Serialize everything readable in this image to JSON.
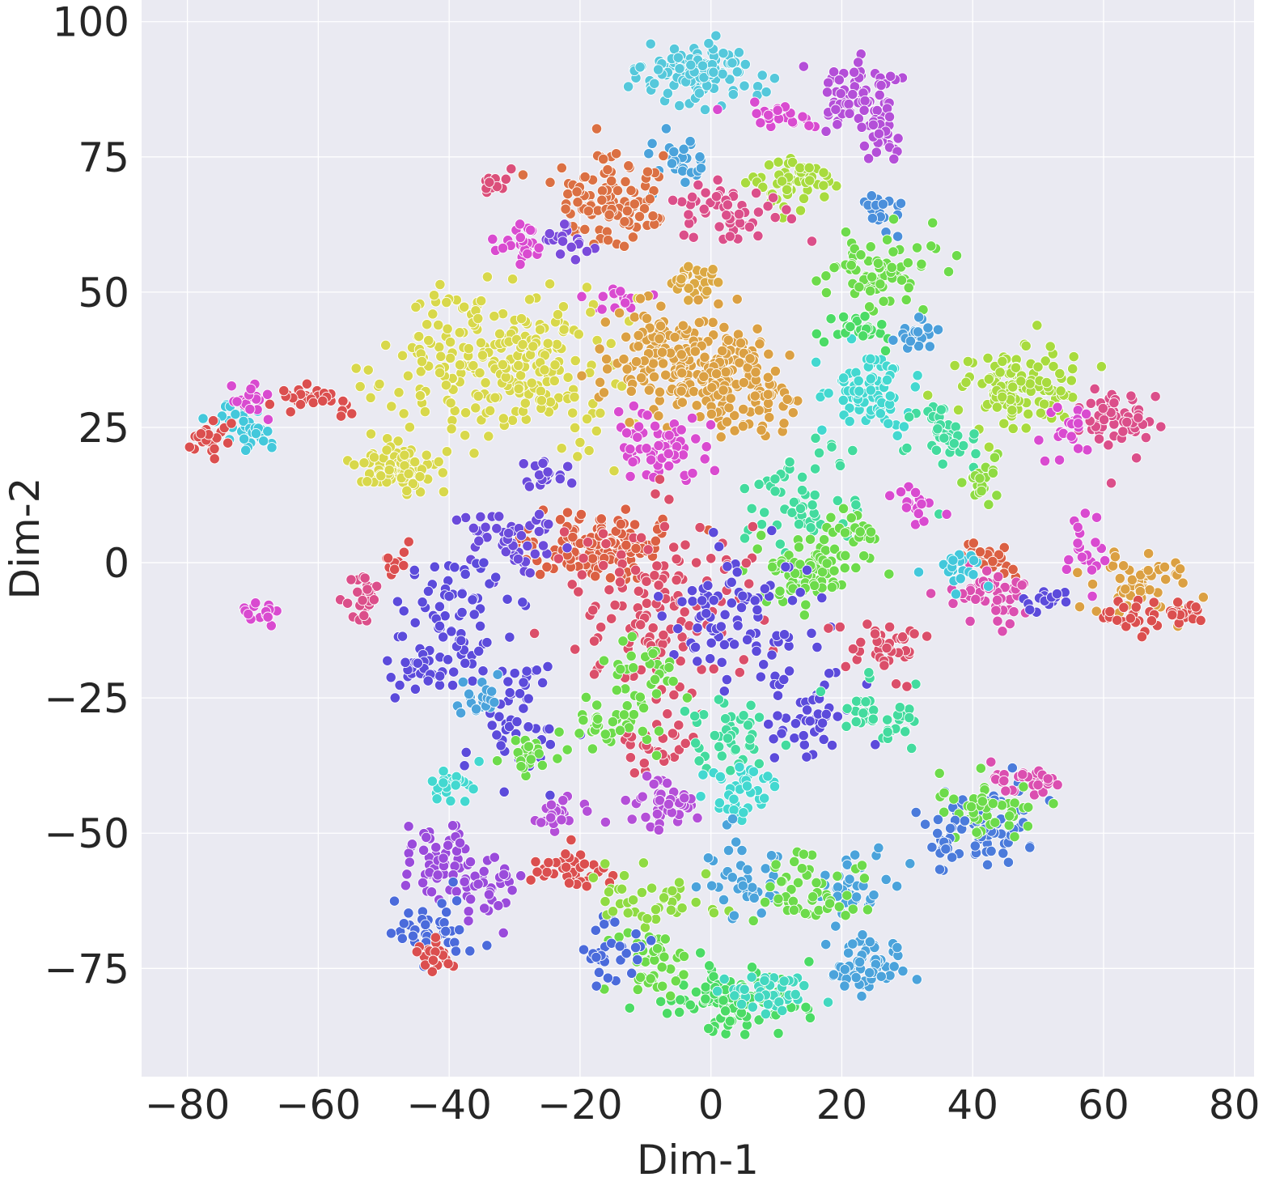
{
  "chart_data": {
    "type": "scatter",
    "title": "",
    "xlabel": "Dim-1",
    "ylabel": "Dim-2",
    "xlim": [
      -87,
      83
    ],
    "ylim": [
      -95,
      104
    ],
    "xticks": [
      -80,
      -60,
      -40,
      -20,
      0,
      20,
      40,
      60,
      80
    ],
    "yticks": [
      -75,
      -50,
      -25,
      0,
      25,
      50,
      75,
      100
    ],
    "xtick_labels": [
      "−80",
      "−60",
      "−40",
      "−20",
      "0",
      "20",
      "40",
      "60",
      "80"
    ],
    "ytick_labels": [
      "−75",
      "−50",
      "−25",
      "0",
      "25",
      "50",
      "75",
      "100"
    ],
    "grid": true,
    "legend": "none",
    "style": {
      "background": "#eaeaf2",
      "grid_color": "#ffffff",
      "marker_edge": "#ffffff"
    },
    "clusters": [
      {
        "x": -2,
        "y": 90,
        "sx": 4.5,
        "sy": 3,
        "n": 120,
        "color": "#55c8db"
      },
      {
        "x": 23,
        "y": 86,
        "sx": 3,
        "sy": 3,
        "n": 80,
        "color": "#b44fd8"
      },
      {
        "x": 26,
        "y": 78,
        "sx": 1.5,
        "sy": 2.5,
        "n": 25,
        "color": "#b44fd8"
      },
      {
        "x": 11,
        "y": 82,
        "sx": 2.5,
        "sy": 1.2,
        "n": 22,
        "color": "#d94bd0"
      },
      {
        "x": -5,
        "y": 74,
        "sx": 2,
        "sy": 2,
        "n": 28,
        "color": "#4ba3db"
      },
      {
        "x": -16,
        "y": 67,
        "sx": 4,
        "sy": 4,
        "n": 110,
        "color": "#db7043"
      },
      {
        "x": -33,
        "y": 70,
        "sx": 1,
        "sy": 1,
        "n": 14,
        "color": "#db4f7a"
      },
      {
        "x": 13,
        "y": 70,
        "sx": 3,
        "sy": 2.5,
        "n": 55,
        "color": "#a8db3e"
      },
      {
        "x": 26,
        "y": 65,
        "sx": 1.5,
        "sy": 2,
        "n": 22,
        "color": "#4b8fdb"
      },
      {
        "x": 2,
        "y": 65,
        "sx": 5,
        "sy": 3,
        "n": 55,
        "color": "#db4f8a"
      },
      {
        "x": -29,
        "y": 59,
        "sx": 2,
        "sy": 2,
        "n": 25,
        "color": "#d94bd0"
      },
      {
        "x": -22,
        "y": 60,
        "sx": 2,
        "sy": 2,
        "n": 18,
        "color": "#7a4bdb"
      },
      {
        "x": 25,
        "y": 54,
        "sx": 4,
        "sy": 3,
        "n": 80,
        "color": "#6ddb4b"
      },
      {
        "x": -3,
        "y": 52,
        "sx": 2,
        "sy": 1.2,
        "n": 28,
        "color": "#dba843"
      },
      {
        "x": -15,
        "y": 49,
        "sx": 2,
        "sy": 1.5,
        "n": 16,
        "color": "#d94bd0"
      },
      {
        "x": -31,
        "y": 37,
        "sx": 8,
        "sy": 7,
        "n": 260,
        "color": "#d8d84b"
      },
      {
        "x": -47,
        "y": 18,
        "sx": 3.5,
        "sy": 2.5,
        "n": 80,
        "color": "#d8d84b"
      },
      {
        "x": -5,
        "y": 38,
        "sx": 6,
        "sy": 5,
        "n": 200,
        "color": "#dba043"
      },
      {
        "x": 5,
        "y": 32,
        "sx": 4,
        "sy": 4,
        "n": 80,
        "color": "#dba043"
      },
      {
        "x": 24,
        "y": 32,
        "sx": 3.5,
        "sy": 4,
        "n": 80,
        "color": "#43d8d0"
      },
      {
        "x": 23,
        "y": 43,
        "sx": 3,
        "sy": 2,
        "n": 25,
        "color": "#4bdb65"
      },
      {
        "x": 31,
        "y": 42,
        "sx": 1.5,
        "sy": 2,
        "n": 20,
        "color": "#4b9fdb"
      },
      {
        "x": 47,
        "y": 32,
        "sx": 4.5,
        "sy": 4,
        "n": 120,
        "color": "#a8db3e"
      },
      {
        "x": 62,
        "y": 27,
        "sx": 3,
        "sy": 3,
        "n": 55,
        "color": "#db4f8a"
      },
      {
        "x": 54,
        "y": 25,
        "sx": 2,
        "sy": 3,
        "n": 20,
        "color": "#d94bd0"
      },
      {
        "x": 36,
        "y": 23,
        "sx": 3,
        "sy": 3.5,
        "n": 40,
        "color": "#43db9e"
      },
      {
        "x": 41,
        "y": 15,
        "sx": 1.8,
        "sy": 2.5,
        "n": 22,
        "color": "#8fdb43"
      },
      {
        "x": 32,
        "y": 11,
        "sx": 2,
        "sy": 2,
        "n": 20,
        "color": "#d94bd0"
      },
      {
        "x": -72,
        "y": 27,
        "sx": 2,
        "sy": 1.5,
        "n": 22,
        "color": "#43c8db"
      },
      {
        "x": -69,
        "y": 24,
        "sx": 1.5,
        "sy": 1.5,
        "n": 15,
        "color": "#43c8db"
      },
      {
        "x": -70,
        "y": 30,
        "sx": 1.2,
        "sy": 1.5,
        "n": 18,
        "color": "#d94bd0"
      },
      {
        "x": -60,
        "y": 30,
        "sx": 2.5,
        "sy": 1.2,
        "n": 30,
        "color": "#db4f4f"
      },
      {
        "x": -77,
        "y": 23,
        "sx": 1.5,
        "sy": 1.5,
        "n": 25,
        "color": "#db4f4f"
      },
      {
        "x": -9,
        "y": 22,
        "sx": 4,
        "sy": 3,
        "n": 60,
        "color": "#d94bd0"
      },
      {
        "x": -25,
        "y": 16,
        "sx": 1.5,
        "sy": 1.5,
        "n": 18,
        "color": "#6b4bdb"
      },
      {
        "x": 14,
        "y": 12,
        "sx": 4,
        "sy": 6,
        "n": 60,
        "color": "#43db9e"
      },
      {
        "x": -17,
        "y": 3,
        "sx": 5,
        "sy": 3,
        "n": 130,
        "color": "#db6043"
      },
      {
        "x": -30,
        "y": 4,
        "sx": 4,
        "sy": 3,
        "n": 50,
        "color": "#6b4bdb"
      },
      {
        "x": 15,
        "y": -2,
        "sx": 4,
        "sy": 3,
        "n": 90,
        "color": "#6ddb4b"
      },
      {
        "x": 22,
        "y": 6,
        "sx": 2,
        "sy": 2,
        "n": 20,
        "color": "#6ddb4b"
      },
      {
        "x": -8,
        "y": -8,
        "sx": 8,
        "sy": 8,
        "n": 140,
        "color": "#db4f6a"
      },
      {
        "x": 5,
        "y": -10,
        "sx": 6,
        "sy": 6,
        "n": 90,
        "color": "#5c4bdb"
      },
      {
        "x": -40,
        "y": -10,
        "sx": 4,
        "sy": 6,
        "n": 70,
        "color": "#5c4bdb"
      },
      {
        "x": -45,
        "y": -20,
        "sx": 2,
        "sy": 2,
        "n": 25,
        "color": "#5c4bdb"
      },
      {
        "x": -30,
        "y": -30,
        "sx": 4,
        "sy": 6,
        "n": 50,
        "color": "#5c4bdb"
      },
      {
        "x": -35,
        "y": -25,
        "sx": 2,
        "sy": 2,
        "n": 20,
        "color": "#4ba3db"
      },
      {
        "x": -53,
        "y": -7,
        "sx": 1.5,
        "sy": 2.5,
        "n": 25,
        "color": "#db4f8a"
      },
      {
        "x": -69,
        "y": -9,
        "sx": 1.5,
        "sy": 1,
        "n": 16,
        "color": "#d94bd0"
      },
      {
        "x": -48,
        "y": 1,
        "sx": 1,
        "sy": 1.5,
        "n": 10,
        "color": "#db4f4f"
      },
      {
        "x": 15,
        "y": -28,
        "sx": 3,
        "sy": 3,
        "n": 45,
        "color": "#5c4bdb"
      },
      {
        "x": 26,
        "y": -28,
        "sx": 3,
        "sy": 3,
        "n": 40,
        "color": "#43db9e"
      },
      {
        "x": 26,
        "y": -15,
        "sx": 3,
        "sy": 3,
        "n": 40,
        "color": "#db4f6a"
      },
      {
        "x": -8,
        "y": -33,
        "sx": 3,
        "sy": 3,
        "n": 30,
        "color": "#db4f6a"
      },
      {
        "x": 3,
        "y": -32,
        "sx": 3,
        "sy": 4,
        "n": 45,
        "color": "#43db9e"
      },
      {
        "x": -16,
        "y": -30,
        "sx": 3,
        "sy": 3,
        "n": 40,
        "color": "#6ddb4b"
      },
      {
        "x": -10,
        "y": -20,
        "sx": 3,
        "sy": 3,
        "n": 30,
        "color": "#6ddb4b"
      },
      {
        "x": -28,
        "y": -35,
        "sx": 2,
        "sy": 2,
        "n": 22,
        "color": "#6ddb4b"
      },
      {
        "x": -7,
        "y": -45,
        "sx": 3,
        "sy": 2,
        "n": 45,
        "color": "#b44fd8"
      },
      {
        "x": -24,
        "y": -47,
        "sx": 2,
        "sy": 1.5,
        "n": 22,
        "color": "#b44fd8"
      },
      {
        "x": -40,
        "y": -41,
        "sx": 2,
        "sy": 1.5,
        "n": 22,
        "color": "#43d8d0"
      },
      {
        "x": 5,
        "y": -43,
        "sx": 3,
        "sy": 3,
        "n": 40,
        "color": "#43d8d0"
      },
      {
        "x": -22,
        "y": -57,
        "sx": 2.5,
        "sy": 2,
        "n": 40,
        "color": "#db4f4f"
      },
      {
        "x": -42,
        "y": -55,
        "sx": 2.5,
        "sy": 4,
        "n": 45,
        "color": "#9a4bdb"
      },
      {
        "x": -35,
        "y": -60,
        "sx": 3,
        "sy": 3,
        "n": 40,
        "color": "#9a4bdb"
      },
      {
        "x": -42,
        "y": -68,
        "sx": 3,
        "sy": 3,
        "n": 40,
        "color": "#4b6bdb"
      },
      {
        "x": -42,
        "y": -73,
        "sx": 1.5,
        "sy": 1.5,
        "n": 18,
        "color": "#db4f4f"
      },
      {
        "x": 44,
        "y": -48,
        "sx": 3.5,
        "sy": 4,
        "n": 70,
        "color": "#4b7bdb"
      },
      {
        "x": 42,
        "y": -45,
        "sx": 4,
        "sy": 3,
        "n": 45,
        "color": "#6ddb4b"
      },
      {
        "x": 36,
        "y": -50,
        "sx": 2,
        "sy": 3,
        "n": 22,
        "color": "#4b7bdb"
      },
      {
        "x": 48,
        "y": -40,
        "sx": 3,
        "sy": 1.5,
        "n": 30,
        "color": "#db4fb0"
      },
      {
        "x": 23,
        "y": -74,
        "sx": 3,
        "sy": 2.5,
        "n": 60,
        "color": "#4ba3db"
      },
      {
        "x": 22,
        "y": -60,
        "sx": 3,
        "sy": 3,
        "n": 35,
        "color": "#4ba3db"
      },
      {
        "x": 3,
        "y": -81,
        "sx": 5,
        "sy": 3,
        "n": 110,
        "color": "#4bdb65"
      },
      {
        "x": 10,
        "y": -80,
        "sx": 4,
        "sy": 2,
        "n": 40,
        "color": "#43d8c0"
      },
      {
        "x": -8,
        "y": -74,
        "sx": 3,
        "sy": 3,
        "n": 40,
        "color": "#6ddb4b"
      },
      {
        "x": -15,
        "y": -72,
        "sx": 2.5,
        "sy": 3,
        "n": 30,
        "color": "#4b6bdb"
      },
      {
        "x": -8,
        "y": -62,
        "sx": 5,
        "sy": 3,
        "n": 40,
        "color": "#8fdb43"
      },
      {
        "x": 5,
        "y": -57,
        "sx": 3,
        "sy": 4,
        "n": 40,
        "color": "#4ba3db"
      },
      {
        "x": 14,
        "y": -60,
        "sx": 4,
        "sy": 4,
        "n": 50,
        "color": "#6ddb4b"
      },
      {
        "x": 43,
        "y": 0,
        "sx": 2.5,
        "sy": 2,
        "n": 30,
        "color": "#db6043"
      },
      {
        "x": 43,
        "y": -6,
        "sx": 3,
        "sy": 3,
        "n": 50,
        "color": "#db4fb0"
      },
      {
        "x": 38,
        "y": -1,
        "sx": 2,
        "sy": 2,
        "n": 22,
        "color": "#43c8db"
      },
      {
        "x": 65,
        "y": -4,
        "sx": 4,
        "sy": 3,
        "n": 60,
        "color": "#dba043"
      },
      {
        "x": 65,
        "y": -10,
        "sx": 3,
        "sy": 1.5,
        "n": 25,
        "color": "#db4f4f"
      },
      {
        "x": 72,
        "y": -9,
        "sx": 1.5,
        "sy": 1.2,
        "n": 20,
        "color": "#db4f4f"
      },
      {
        "x": 58,
        "y": 2,
        "sx": 2,
        "sy": 3,
        "n": 20,
        "color": "#d94bd0"
      },
      {
        "x": 51,
        "y": -7,
        "sx": 2,
        "sy": 1.2,
        "n": 16,
        "color": "#5c4bdb"
      }
    ]
  }
}
